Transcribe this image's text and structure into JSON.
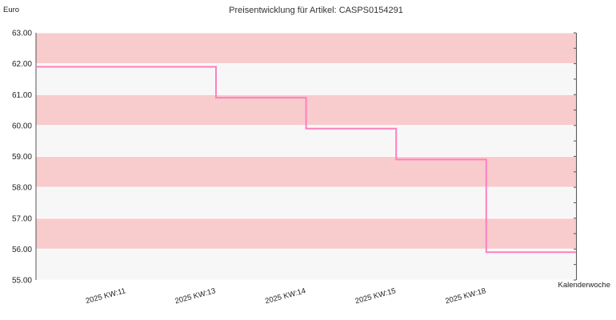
{
  "colors": {
    "band_pink": "#f8cccc",
    "band_grey": "#f7f7f7",
    "gridline": "#ffffff",
    "line": "#ff7fbf",
    "axis": "#555555"
  },
  "chart_data": {
    "type": "line",
    "title": "Preisentwicklung für Artikel: CASPS0154291",
    "ylabel": "Euro",
    "xlabel": "Kalenderwoche",
    "ylim": [
      55.0,
      63.0
    ],
    "y_ticks": [
      "55.00",
      "56.00",
      "57.00",
      "58.00",
      "59.00",
      "60.00",
      "61.00",
      "62.00",
      "63.00"
    ],
    "categories": [
      "2025 KW:11",
      "2025 KW:13",
      "2025 KW:14",
      "2025 KW:15",
      "2025 KW:18"
    ],
    "series": [
      {
        "values": [
          61.9,
          60.9,
          59.9,
          58.9,
          55.9
        ],
        "step": true
      }
    ],
    "grid": true,
    "alternating_bands": true
  }
}
